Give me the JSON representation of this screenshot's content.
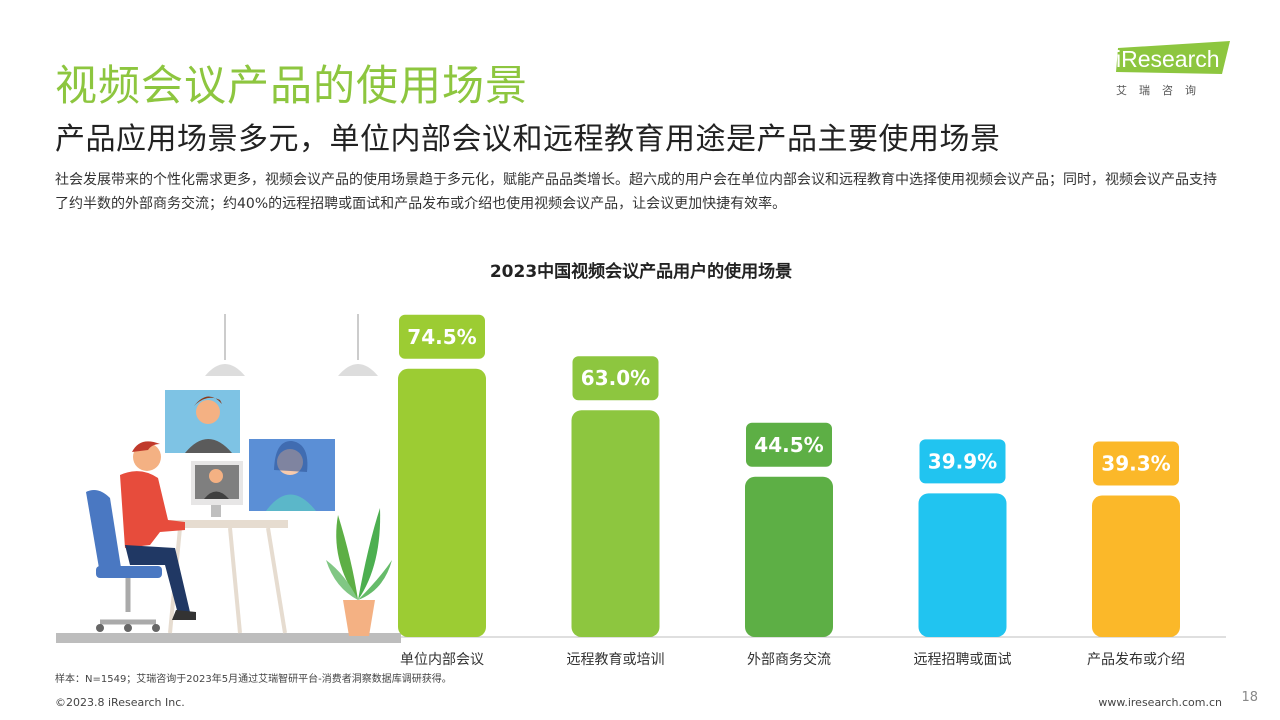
{
  "header": {
    "title": "视频会议产品的使用场景",
    "subtitle": "产品应用场景多元，单位内部会议和远程教育用途是产品主要使用场景",
    "description": "社会发展带来的个性化需求更多，视频会议产品的使用场景趋于多元化，赋能产品品类增长。超六成的用户会在单位内部会议和远程教育中选择使用视频会议产品；同时，视频会议产品支持了约半数的外部商务交流；约40%的远程招聘或面试和产品发布或介绍也使用视频会议产品，让会议更加快捷有效率。"
  },
  "logo": {
    "brand": "iResearch",
    "sub": "艾瑞咨询"
  },
  "chart_data": {
    "type": "bar",
    "title": "2023中国视频会议产品用户的使用场景",
    "categories": [
      "单位内部会议",
      "远程教育或培训",
      "外部商务交流",
      "远程招聘或面试",
      "产品发布或介绍"
    ],
    "values": [
      74.5,
      63.0,
      44.5,
      39.9,
      39.3
    ],
    "value_labels": [
      "74.5%",
      "63.0%",
      "44.5%",
      "39.9%",
      "39.3%"
    ],
    "colors": [
      "#9ccc33",
      "#8dc63f",
      "#5daf45",
      "#21c4f0",
      "#fbb829"
    ],
    "xlabel": "",
    "ylabel": "",
    "ylim": [
      0,
      80
    ],
    "grid": false,
    "legend": "none"
  },
  "footer": {
    "note": "样本：N=1549；艾瑞咨询于2023年5月通过艾瑞智研平台-消费者洞察数据库调研获得。",
    "copyright": "©2023.8 iResearch Inc.",
    "website": "www.iresearch.com.cn",
    "page": "18"
  }
}
